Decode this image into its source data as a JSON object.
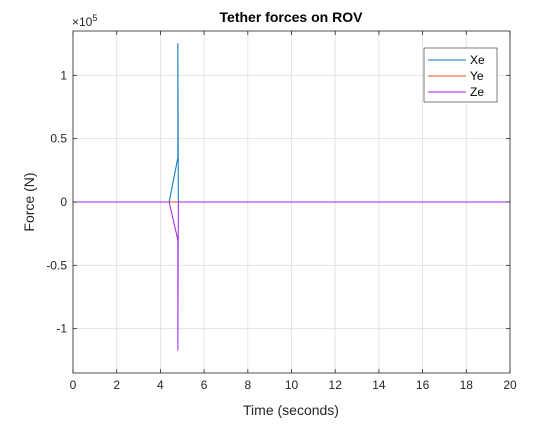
{
  "chart_data": {
    "type": "line",
    "title": "Tether forces on ROV",
    "xlabel": "Time (seconds)",
    "ylabel": "Force (N)",
    "exponent_label": "×10",
    "exponent_power": "5",
    "xlim": [
      0,
      20
    ],
    "ylim": [
      -1.35,
      1.35
    ],
    "scale": 100000,
    "xticks": [
      0,
      2,
      4,
      6,
      8,
      10,
      12,
      14,
      16,
      18,
      20
    ],
    "yticks": [
      -1,
      -0.5,
      0,
      0.5,
      1
    ],
    "ytick_labels": [
      "-1",
      "-0.5",
      "0",
      "0.5",
      "1"
    ],
    "grid": true,
    "legend_position": "top-right",
    "series": [
      {
        "name": "Xe",
        "color": "#0072BD",
        "x": [
          0,
          4.4,
          4.8,
          4.8,
          4.82,
          20
        ],
        "y": [
          0,
          0,
          0.35,
          1.25,
          0,
          0
        ]
      },
      {
        "name": "Ye",
        "color": "#D95319",
        "x": [
          0,
          20
        ],
        "y": [
          0,
          0
        ]
      },
      {
        "name": "Ze",
        "color": "#A020F0",
        "x": [
          0,
          4.4,
          4.8,
          4.8,
          4.82,
          20
        ],
        "y": [
          0,
          0,
          -0.3,
          -1.17,
          0,
          0
        ]
      }
    ]
  }
}
